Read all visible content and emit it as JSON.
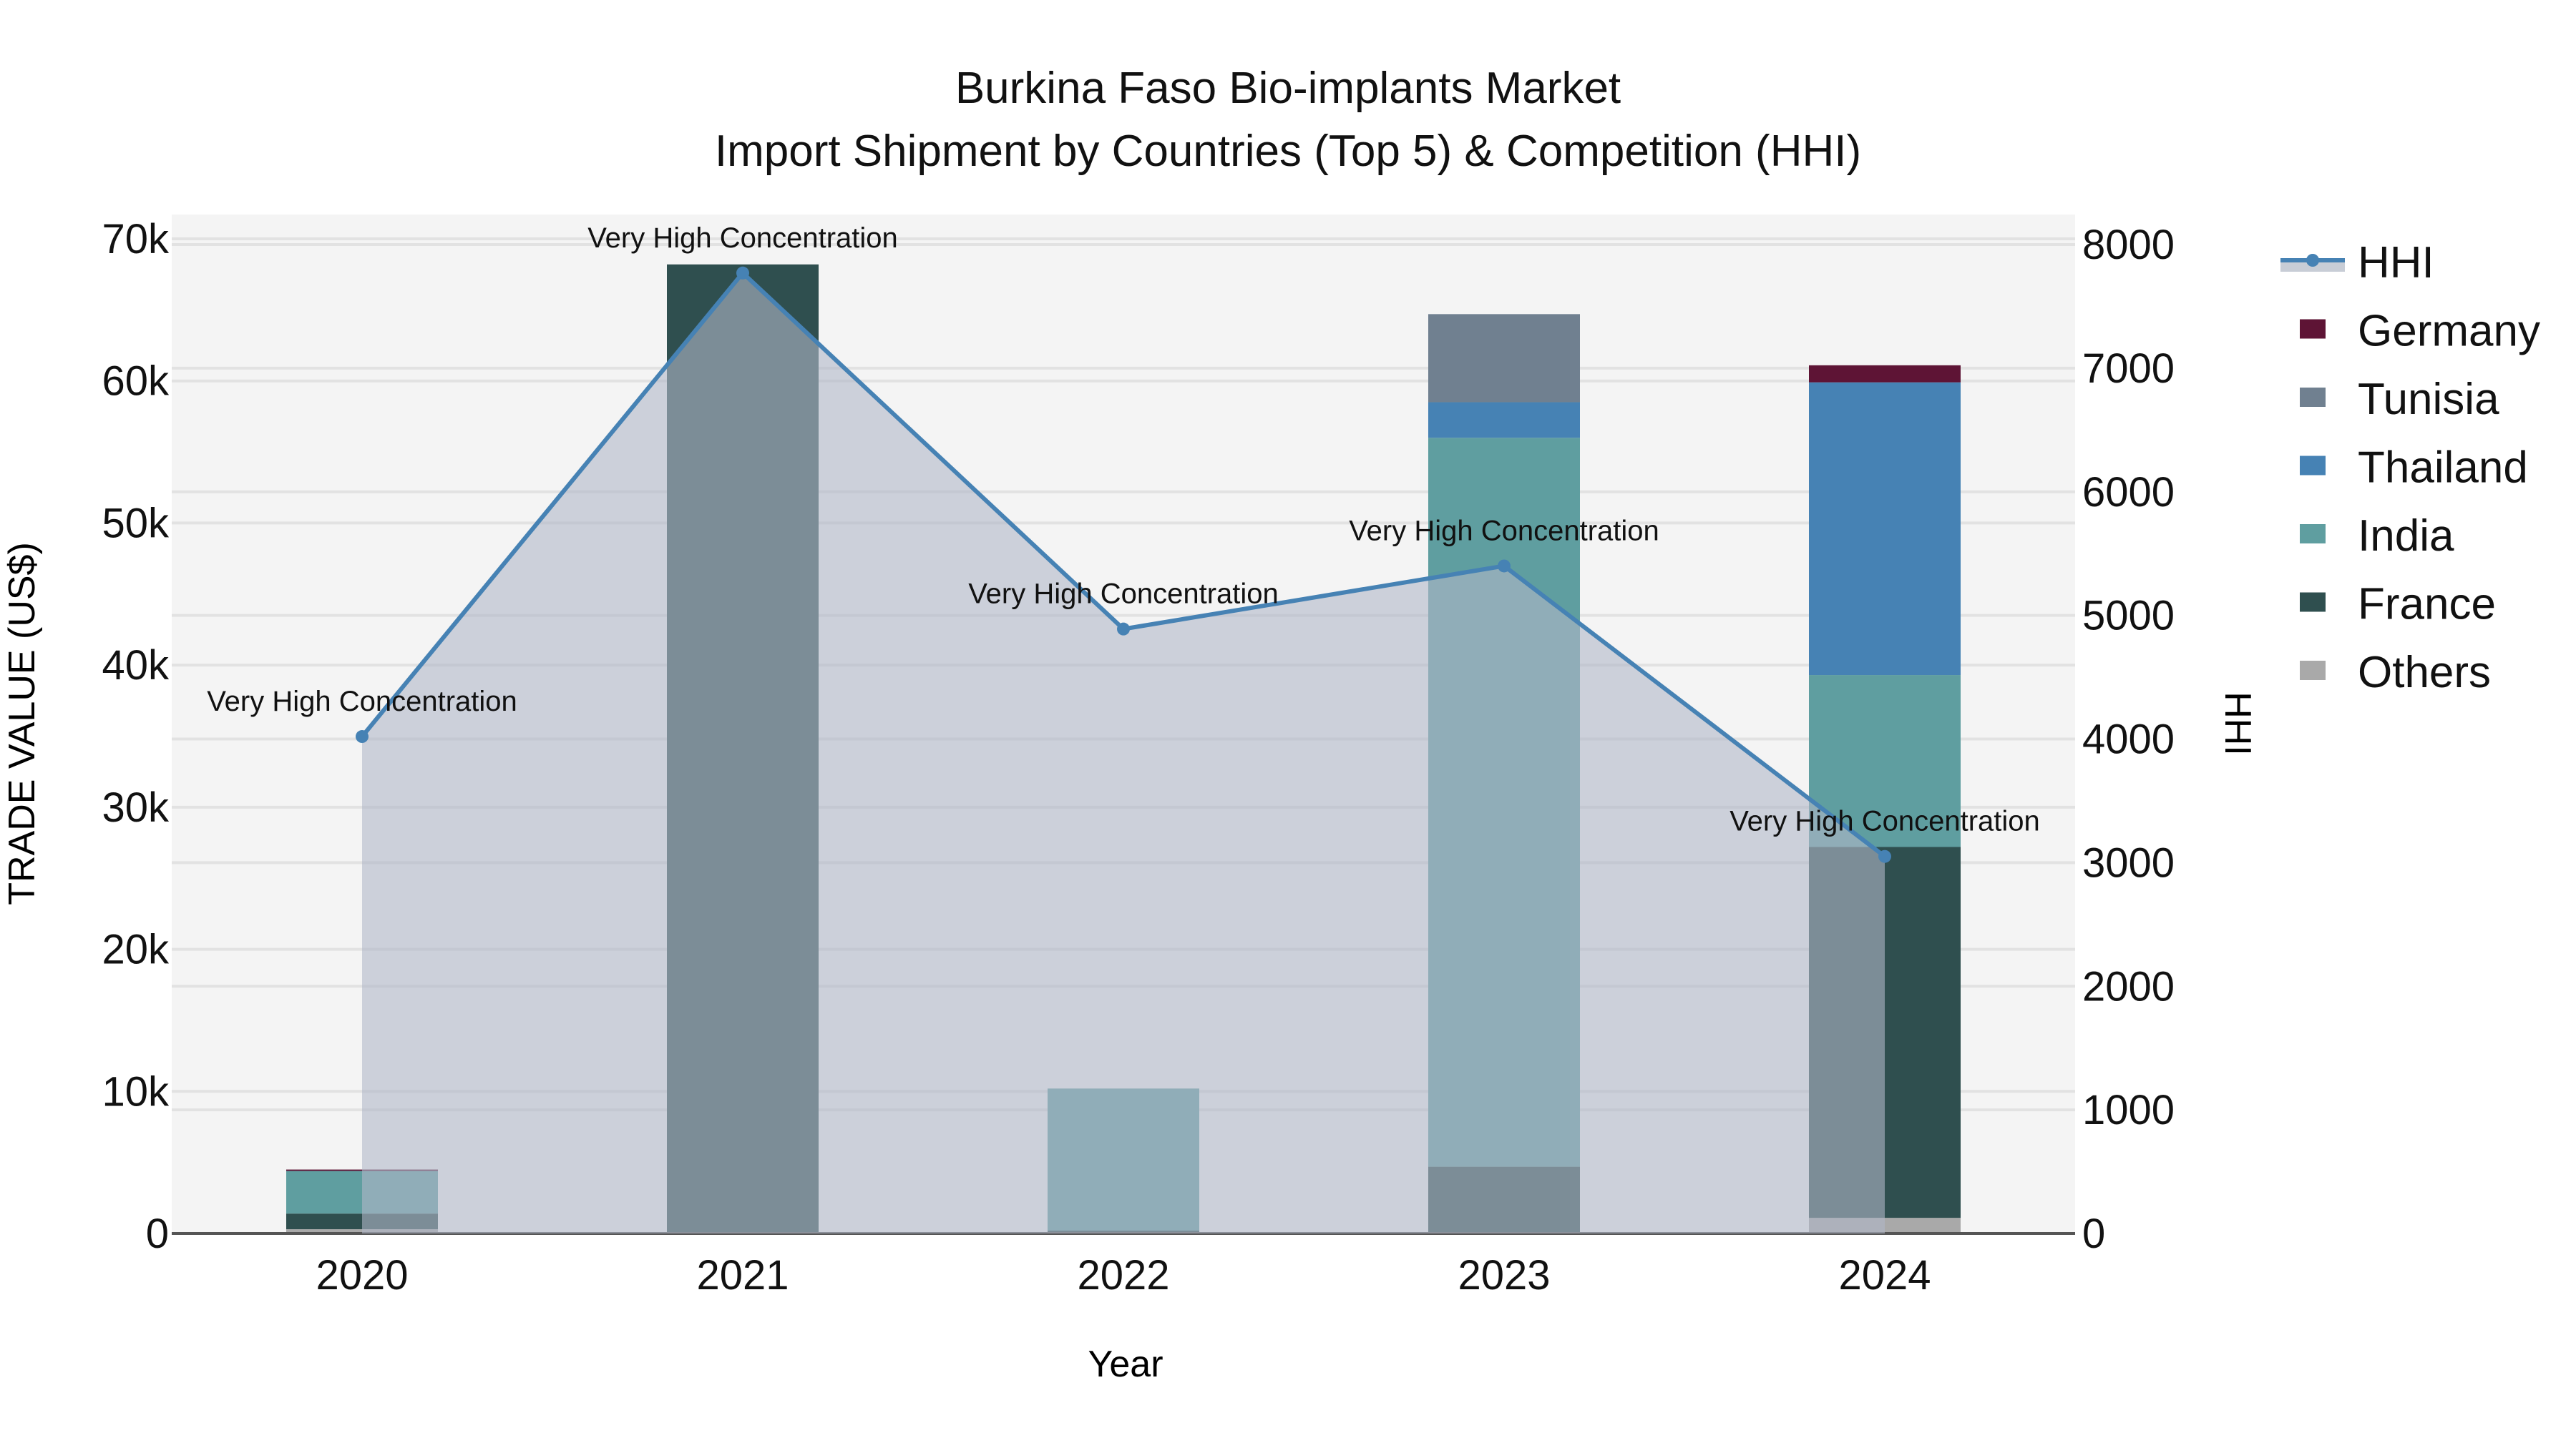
{
  "chart_data": {
    "type": "bar",
    "title": "Burkina Faso Bio-implants Market",
    "subtitle": "Import Shipment by Countries (Top 5) & Competition (HHI)",
    "xlabel": "Year",
    "ylabel": "TRADE VALUE (US$)",
    "y2label": "HHI",
    "categories": [
      "2020",
      "2021",
      "2022",
      "2023",
      "2024"
    ],
    "stacked": true,
    "ylim": [
      0,
      70000
    ],
    "y2lim": [
      0,
      8000
    ],
    "yticks": [
      0,
      10000,
      20000,
      30000,
      40000,
      50000,
      60000,
      70000
    ],
    "ytick_labels": [
      "0",
      "10k",
      "20k",
      "30k",
      "40k",
      "50k",
      "60k",
      "70k"
    ],
    "y2ticks": [
      0,
      1000,
      2000,
      3000,
      4000,
      5000,
      6000,
      7000,
      8000
    ],
    "y2tick_labels": [
      "0",
      "1000",
      "2000",
      "3000",
      "4000",
      "5000",
      "6000",
      "7000",
      "8000"
    ],
    "grid": true,
    "legend_position": "right",
    "series": [
      {
        "name": "Others",
        "color": "#A9A9A9",
        "values": [
          300,
          0,
          0,
          0,
          1100
        ]
      },
      {
        "name": "France",
        "color": "#2F4F4F",
        "values": [
          1100,
          68200,
          200,
          4700,
          26100
        ]
      },
      {
        "name": "India",
        "color": "#5F9EA0",
        "values": [
          3000,
          0,
          10000,
          51300,
          12100
        ]
      },
      {
        "name": "Thailand",
        "color": "#4682B4",
        "values": [
          0,
          0,
          0,
          2500,
          20600
        ]
      },
      {
        "name": "Tunisia",
        "color": "#708090",
        "values": [
          0,
          0,
          0,
          6200,
          0
        ]
      },
      {
        "name": "Germany",
        "color": "#5E1435",
        "values": [
          100,
          0,
          0,
          0,
          1200
        ]
      }
    ],
    "line_series": {
      "name": "HHI",
      "axis": "y2",
      "color": "#4682B4",
      "fill_color": "rgba(176,184,200,0.6)",
      "values": [
        4020,
        7770,
        4890,
        5400,
        3050
      ]
    },
    "annotations": [
      {
        "x": "2020",
        "text": "Very High Concentration"
      },
      {
        "x": "2021",
        "text": "Very High Concentration"
      },
      {
        "x": "2022",
        "text": "Very High Concentration"
      },
      {
        "x": "2023",
        "text": "Very High Concentration"
      },
      {
        "x": "2024",
        "text": "Very High Concentration"
      }
    ]
  },
  "legend": {
    "items": [
      {
        "label": "HHI",
        "kind": "line"
      },
      {
        "label": "Germany",
        "color": "#5E1435"
      },
      {
        "label": "Tunisia",
        "color": "#708090"
      },
      {
        "label": "Thailand",
        "color": "#4682B4"
      },
      {
        "label": "India",
        "color": "#5F9EA0"
      },
      {
        "label": "France",
        "color": "#2F4F4F"
      },
      {
        "label": "Others",
        "color": "#A9A9A9"
      }
    ]
  }
}
